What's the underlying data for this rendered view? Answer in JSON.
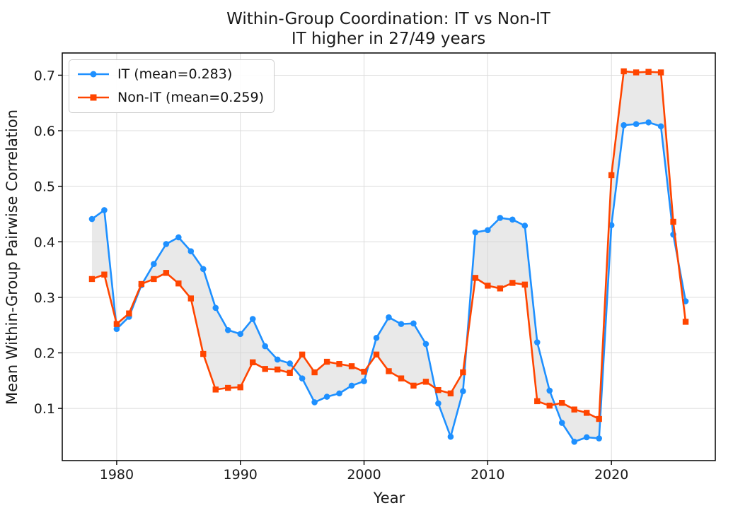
{
  "chart_data": {
    "type": "line",
    "title_lines": [
      "Within-Group Coordination: IT vs Non-IT",
      "IT higher in 27/49 years"
    ],
    "xlabel": "Year",
    "ylabel": "Mean Within-Group Pairwise Correlation",
    "x": [
      1978,
      1979,
      1980,
      1981,
      1982,
      1983,
      1984,
      1985,
      1986,
      1987,
      1988,
      1989,
      1990,
      1991,
      1992,
      1993,
      1994,
      1995,
      1996,
      1997,
      1998,
      1999,
      2000,
      2001,
      2002,
      2003,
      2004,
      2005,
      2006,
      2007,
      2008,
      2009,
      2010,
      2011,
      2012,
      2013,
      2014,
      2015,
      2016,
      2017,
      2018,
      2019,
      2020,
      2021,
      2022,
      2023,
      2024,
      2025,
      2026
    ],
    "series": [
      {
        "name": "IT (mean=0.283)",
        "mean": 0.283,
        "color": "#1E90FF",
        "marker": "circle",
        "values": [
          0.441,
          0.457,
          0.243,
          0.265,
          0.322,
          0.36,
          0.396,
          0.408,
          0.383,
          0.351,
          0.281,
          0.241,
          0.234,
          0.261,
          0.212,
          0.188,
          0.181,
          0.154,
          0.111,
          0.121,
          0.127,
          0.141,
          0.149,
          0.227,
          0.264,
          0.252,
          0.253,
          0.216,
          0.109,
          0.049,
          0.131,
          0.417,
          0.421,
          0.443,
          0.44,
          0.429,
          0.219,
          0.132,
          0.074,
          0.04,
          0.048,
          0.046,
          0.43,
          0.61,
          0.612,
          0.615,
          0.608,
          0.413,
          0.293
        ]
      },
      {
        "name": "Non-IT (mean=0.259)",
        "mean": 0.259,
        "color": "#FF4500",
        "marker": "square",
        "values": [
          0.333,
          0.341,
          0.252,
          0.271,
          0.324,
          0.333,
          0.344,
          0.325,
          0.298,
          0.198,
          0.134,
          0.137,
          0.138,
          0.183,
          0.171,
          0.17,
          0.164,
          0.197,
          0.165,
          0.184,
          0.18,
          0.176,
          0.166,
          0.197,
          0.167,
          0.154,
          0.141,
          0.148,
          0.133,
          0.127,
          0.165,
          0.335,
          0.321,
          0.316,
          0.326,
          0.323,
          0.113,
          0.105,
          0.11,
          0.098,
          0.092,
          0.081,
          0.52,
          0.707,
          0.705,
          0.706,
          0.705,
          0.436,
          0.256
        ]
      }
    ],
    "fill_between": {
      "color": "#D3D3D3",
      "opacity": 0.5
    },
    "xlim": [
      1975.6,
      2028.4
    ],
    "ylim": [
      0.006,
      0.74
    ],
    "xticks": [
      1980,
      1990,
      2000,
      2010,
      2020
    ],
    "yticks": [
      0.1,
      0.2,
      0.3,
      0.4,
      0.5,
      0.6,
      0.7
    ],
    "grid": true,
    "grid_color": "#DCDCDC",
    "spine_color": "#000000",
    "legend_position": "upper left"
  }
}
